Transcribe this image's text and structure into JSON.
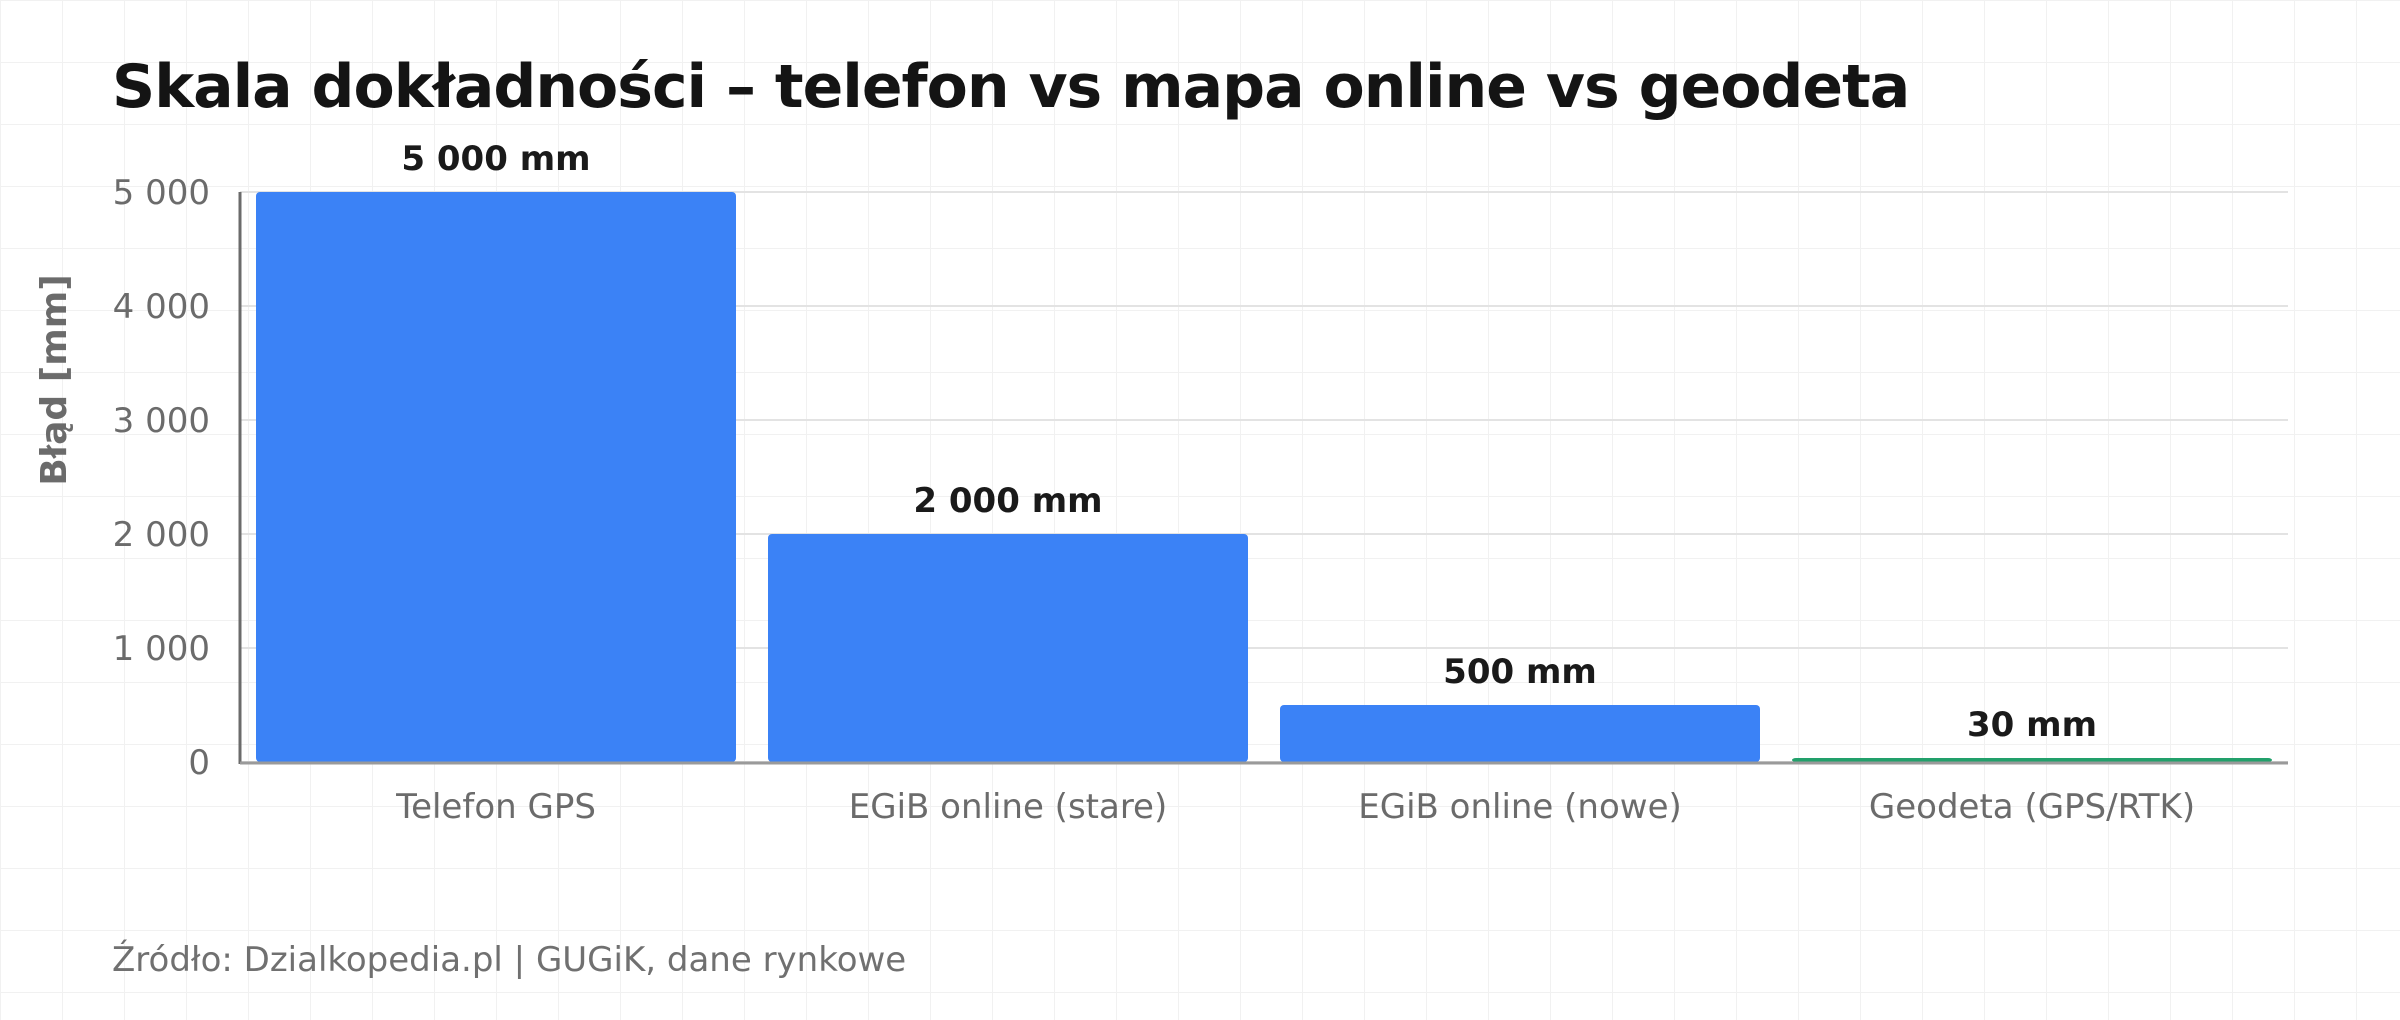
{
  "chart_data": {
    "type": "bar",
    "title": "Skala dokładności – telefon vs mapa online vs geodeta",
    "ylabel": "Błąd [mm]",
    "xlabel": "",
    "ylim": [
      0,
      5000
    ],
    "yticks": [
      0,
      1000,
      2000,
      3000,
      4000,
      5000
    ],
    "ytick_labels": [
      "0",
      "1 000",
      "2 000",
      "3 000",
      "4 000",
      "5 000"
    ],
    "categories": [
      "Telefon GPS",
      "EGiB online (stare)",
      "EGiB online (nowe)",
      "Geodeta (GPS/RTK)"
    ],
    "values": [
      5000,
      2000,
      500,
      30
    ],
    "value_labels": [
      "5 000 mm",
      "2 000 mm",
      "500 mm",
      "30 mm"
    ],
    "bar_colors": [
      "#3b82f6",
      "#3b82f6",
      "#3b82f6",
      "#22a06b"
    ],
    "grid": true,
    "legend": "none"
  },
  "source": "Źródło: Dzialkopedia.pl | GUGiK, dane rynkowe"
}
